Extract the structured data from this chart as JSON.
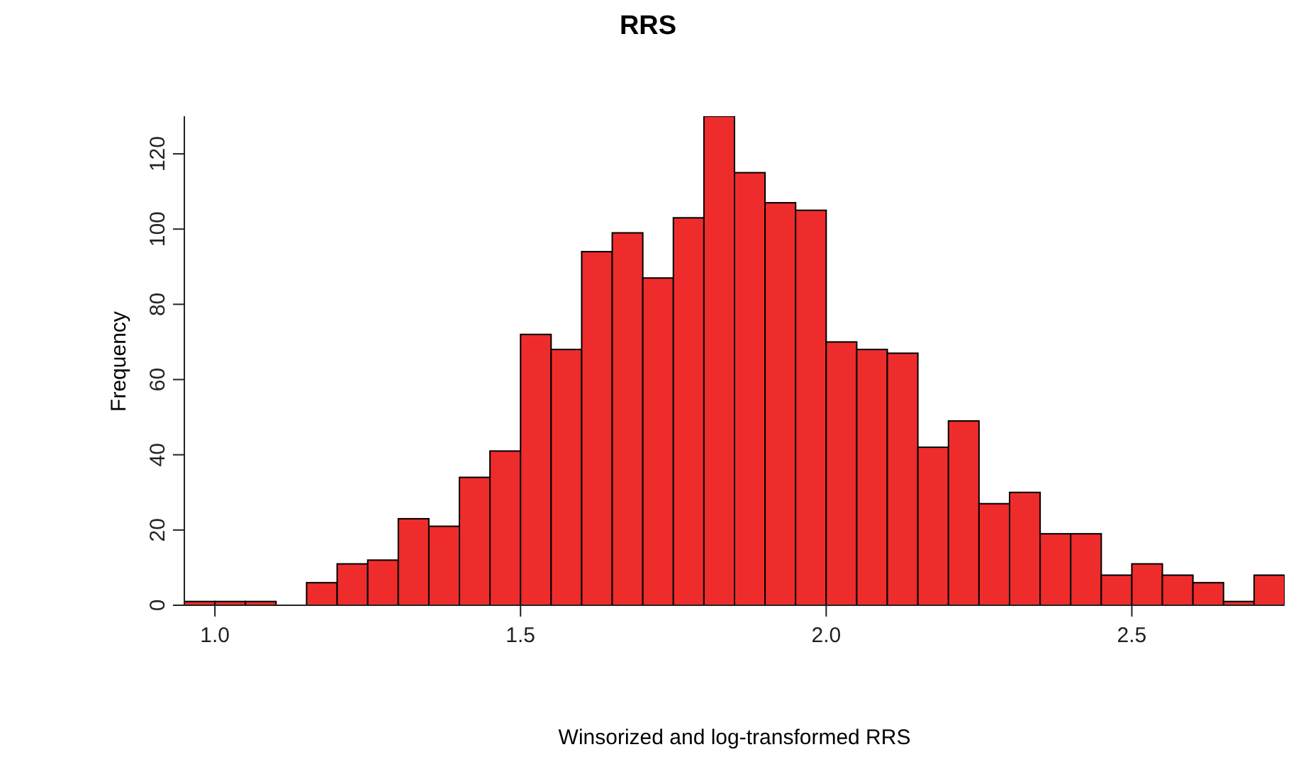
{
  "chart_data": {
    "type": "histogram",
    "title": "RRS",
    "xlabel": "Winsorized and log-transformed RRS",
    "ylabel": "Frequency",
    "bins": [
      0.95,
      1.0,
      1.05,
      1.1,
      1.15,
      1.2,
      1.25,
      1.3,
      1.35,
      1.4,
      1.45,
      1.5,
      1.55,
      1.6,
      1.65,
      1.7,
      1.75,
      1.8,
      1.85,
      1.9,
      1.95,
      2.0,
      2.05,
      2.1,
      2.15,
      2.2,
      2.25,
      2.3,
      2.35,
      2.4,
      2.45,
      2.5,
      2.55,
      2.6,
      2.65,
      2.7,
      2.75
    ],
    "values": [
      1,
      1,
      1,
      0,
      6,
      11,
      12,
      23,
      21,
      34,
      41,
      72,
      68,
      94,
      99,
      87,
      103,
      130,
      115,
      107,
      105,
      70,
      68,
      67,
      42,
      49,
      27,
      30,
      19,
      19,
      8,
      11,
      8,
      6,
      1,
      8
    ],
    "color": "#ee2c2c",
    "xlim": [
      0.95,
      2.75
    ],
    "xticks": [
      {
        "value": 1.0,
        "label": "1.0"
      },
      {
        "value": 1.5,
        "label": "1.5"
      },
      {
        "value": 2.0,
        "label": "2.0"
      },
      {
        "value": 2.5,
        "label": "2.5"
      }
    ],
    "ylim": [
      0,
      130
    ],
    "yticks": [
      0,
      20,
      40,
      60,
      80,
      100,
      120
    ],
    "grid": false
  }
}
